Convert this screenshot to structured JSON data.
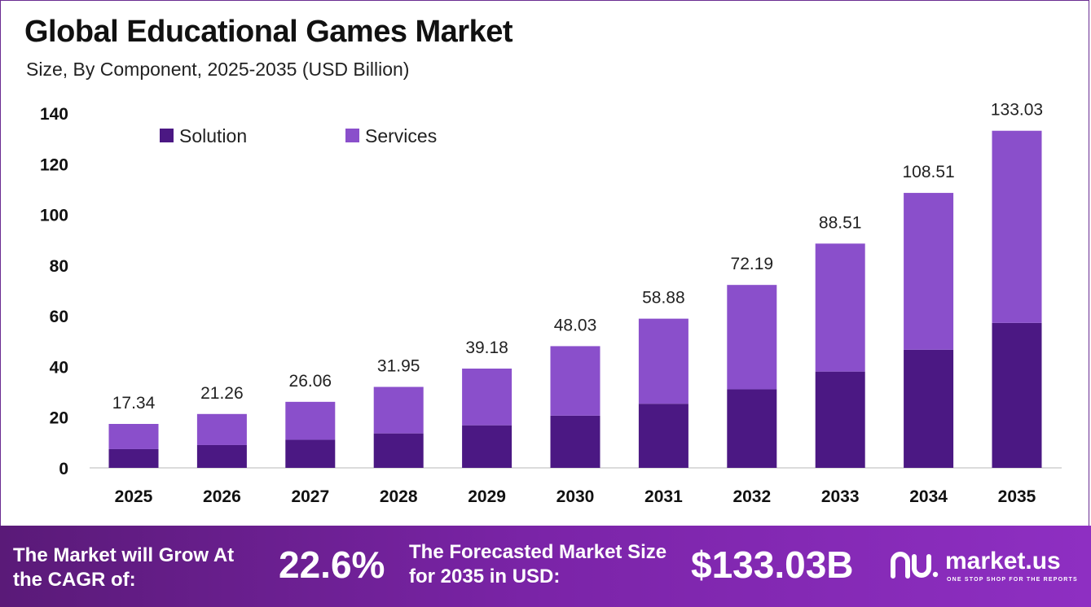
{
  "title": "Global Educational Games Market",
  "subtitle": "Size, By Component, 2025-2035 (USD Billion)",
  "chart_data": {
    "type": "bar",
    "stacked": true,
    "categories": [
      "2025",
      "2026",
      "2027",
      "2028",
      "2029",
      "2030",
      "2031",
      "2032",
      "2033",
      "2034",
      "2035"
    ],
    "series": [
      {
        "name": "Solution",
        "color": "#4b1883",
        "values": [
          7.4,
          9.0,
          11.1,
          13.6,
          16.8,
          20.6,
          25.3,
          31.0,
          38.0,
          46.6,
          57.2
        ]
      },
      {
        "name": "Services",
        "color": "#8a4fcb",
        "values": [
          9.94,
          12.26,
          14.96,
          18.35,
          22.38,
          27.43,
          33.58,
          41.19,
          50.51,
          61.91,
          75.83
        ]
      }
    ],
    "totals": [
      17.34,
      21.26,
      26.06,
      31.95,
      39.18,
      48.03,
      58.88,
      72.19,
      88.51,
      108.51,
      133.03
    ],
    "total_labels": [
      "17.34",
      "21.26",
      "26.06",
      "31.95",
      "39.18",
      "48.03",
      "58.88",
      "72.19",
      "88.51",
      "108.51",
      "133.03"
    ],
    "y_ticks": [
      0,
      20,
      40,
      60,
      80,
      100,
      120,
      140
    ],
    "ylim": [
      0,
      140
    ],
    "legend_position": "top-left",
    "grid": false
  },
  "footer": {
    "cagr_label": "The Market will Grow At the CAGR of:",
    "cagr_value": "22.6%",
    "forecast_label": "The Forecasted Market Size for 2035 in USD:",
    "forecast_value": "$133.03B"
  },
  "logo": {
    "name": "market.us",
    "tagline": "ONE STOP SHOP FOR THE REPORTS",
    "icon": "market-us-logo-icon"
  }
}
